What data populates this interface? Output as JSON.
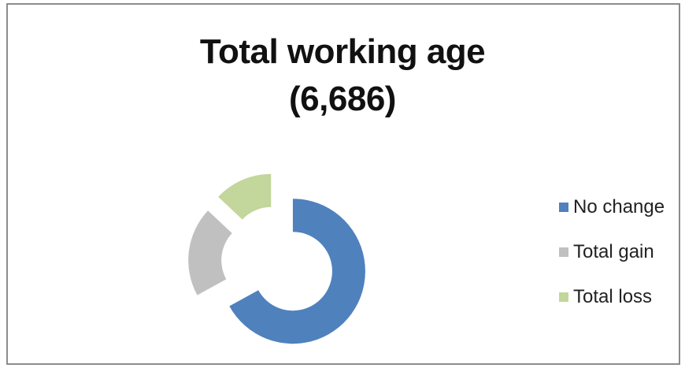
{
  "chart_data": {
    "type": "pie",
    "style": "donut-exploded",
    "title_line1": "Total working age",
    "title_line2": "(6,686)",
    "categories": [
      "No change",
      "Total gain",
      "Total loss"
    ],
    "values": [
      67,
      20,
      13
    ],
    "colors": [
      "#4f81bd",
      "#c0c0c0",
      "#c3d69b"
    ],
    "legend_position": "right"
  }
}
